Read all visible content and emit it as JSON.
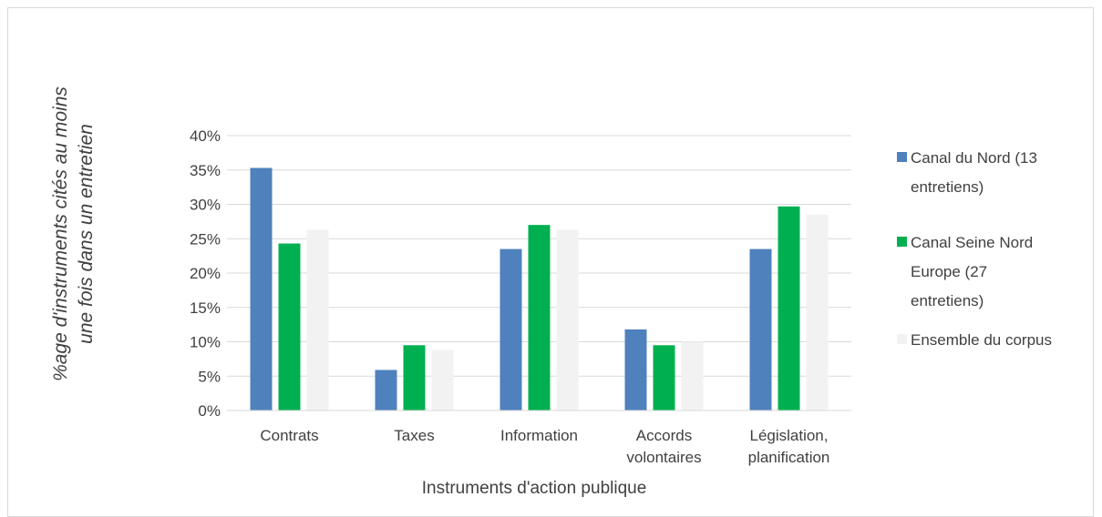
{
  "chart_data": {
    "type": "bar",
    "title": "",
    "ylabel_lines": [
      "%age d'instruments cités au moins",
      "une fois dans un entretien"
    ],
    "xlabel": "Instruments d'action publique",
    "ylim": [
      0,
      0.4
    ],
    "ytick_values": [
      0,
      0.05,
      0.1,
      0.15,
      0.2,
      0.25,
      0.3,
      0.35,
      0.4
    ],
    "ytick_labels": [
      "0%",
      "5%",
      "10%",
      "15%",
      "20%",
      "25%",
      "30%",
      "35%",
      "40%"
    ],
    "categories": [
      {
        "lines": [
          "Contrats"
        ]
      },
      {
        "lines": [
          "Taxes"
        ]
      },
      {
        "lines": [
          "Information"
        ]
      },
      {
        "lines": [
          "Accords",
          "volontaires"
        ]
      },
      {
        "lines": [
          "Législation,",
          "planification"
        ]
      }
    ],
    "grid": true,
    "legend_position": "right",
    "series": [
      {
        "name_lines": [
          "Canal du Nord (13",
          "entretiens)"
        ],
        "color": "#4f81bd",
        "values": [
          0.353,
          0.059,
          0.235,
          0.118,
          0.235
        ]
      },
      {
        "name_lines": [
          "Canal Seine Nord",
          "Europe (27",
          "entretiens)"
        ],
        "color": "#00b050",
        "values": [
          0.243,
          0.095,
          0.27,
          0.095,
          0.297
        ]
      },
      {
        "name_lines": [
          "Ensemble du corpus"
        ],
        "color": "#f2f2f2",
        "values": [
          0.263,
          0.088,
          0.263,
          0.1,
          0.285
        ]
      }
    ]
  }
}
